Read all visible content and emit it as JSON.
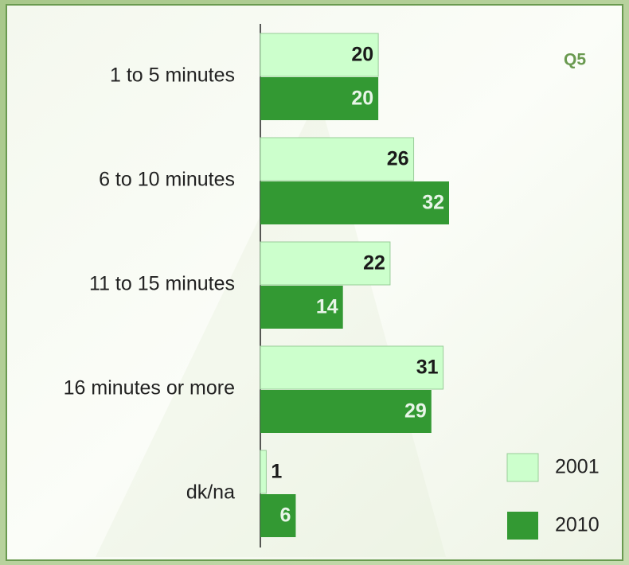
{
  "chart_data": {
    "type": "bar",
    "orientation": "horizontal",
    "title": "Q5",
    "categories": [
      "1 to 5 minutes",
      "6 to 10 minutes",
      "11 to 15 minutes",
      "16 minutes or more",
      "dk/na"
    ],
    "series": [
      {
        "name": "2001",
        "color": "#ccffcc",
        "values": [
          20,
          26,
          22,
          31,
          1
        ]
      },
      {
        "name": "2010",
        "color": "#339933",
        "values": [
          20,
          32,
          14,
          29,
          6
        ]
      }
    ],
    "legend": "lower right"
  }
}
